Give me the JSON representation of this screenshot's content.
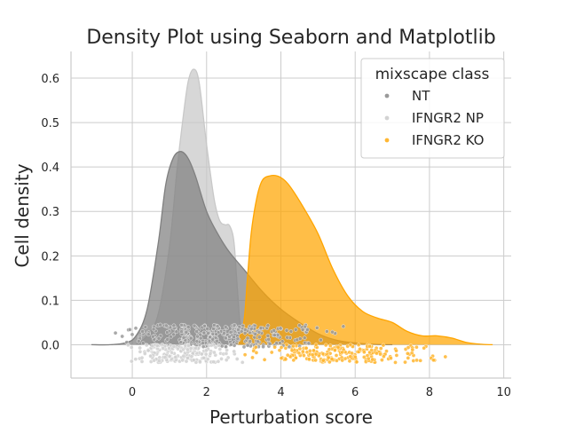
{
  "chart_data": {
    "type": "area",
    "title": "Density Plot using Seaborn and Matplotlib",
    "xlabel": "Perturbation score",
    "ylabel": "Cell density",
    "xlim": [
      -1.65,
      10.2
    ],
    "ylim": [
      -0.075,
      0.66
    ],
    "x_ticks": [
      0,
      2,
      4,
      6,
      8,
      10
    ],
    "x_tick_labels": [
      "0",
      "2",
      "4",
      "6",
      "8",
      "10"
    ],
    "y_ticks": [
      0.0,
      0.1,
      0.2,
      0.3,
      0.4,
      0.5,
      0.6
    ],
    "y_tick_labels": [
      "0.0",
      "0.1",
      "0.2",
      "0.3",
      "0.4",
      "0.5",
      "0.6"
    ],
    "grid": true,
    "legend": {
      "title": "mixscape class",
      "placement": "top-right",
      "entries": [
        "NT",
        "IFNGR2 NP",
        "IFNGR2 KO"
      ]
    },
    "series": [
      {
        "name": "IFNGR2 NP",
        "color": "#c8c8c8",
        "x": [
          0.1,
          0.4,
          0.7,
          1.0,
          1.2,
          1.35,
          1.5,
          1.65,
          1.8,
          2.0,
          2.2,
          2.35,
          2.5,
          2.6,
          2.7,
          2.75,
          2.8,
          2.85,
          2.9,
          3.0,
          3.2,
          3.5
        ],
        "y": [
          0.0,
          0.02,
          0.07,
          0.22,
          0.39,
          0.5,
          0.59,
          0.62,
          0.59,
          0.45,
          0.33,
          0.28,
          0.27,
          0.27,
          0.25,
          0.22,
          0.16,
          0.1,
          0.05,
          0.02,
          0.005,
          0.0
        ]
      },
      {
        "name": "NT",
        "color": "#808080",
        "x": [
          -1.1,
          -0.6,
          -0.2,
          0.1,
          0.4,
          0.7,
          0.9,
          1.1,
          1.3,
          1.5,
          1.7,
          2.0,
          2.3,
          2.6,
          3.0,
          3.5,
          4.0,
          4.5,
          5.0,
          5.5,
          6.0,
          6.5,
          7.0
        ],
        "y": [
          0.0,
          0.0,
          0.004,
          0.02,
          0.08,
          0.23,
          0.36,
          0.42,
          0.435,
          0.42,
          0.38,
          0.3,
          0.25,
          0.21,
          0.17,
          0.12,
          0.08,
          0.05,
          0.025,
          0.01,
          0.004,
          0.001,
          0.0
        ]
      },
      {
        "name": "IFNGR2 KO",
        "color": "#ffa500",
        "x": [
          2.8,
          3.0,
          3.1,
          3.2,
          3.35,
          3.5,
          3.7,
          3.9,
          4.1,
          4.3,
          4.6,
          5.0,
          5.4,
          5.8,
          6.2,
          6.6,
          7.0,
          7.4,
          7.8,
          8.2,
          8.6,
          9.0,
          9.4,
          9.7
        ],
        "y": [
          0.0,
          0.05,
          0.15,
          0.25,
          0.33,
          0.37,
          0.38,
          0.38,
          0.37,
          0.35,
          0.31,
          0.25,
          0.17,
          0.11,
          0.075,
          0.06,
          0.05,
          0.03,
          0.02,
          0.02,
          0.015,
          0.005,
          0.001,
          0.0
        ]
      }
    ],
    "strip_points": [
      {
        "name": "NT",
        "color": "#9a9a9a",
        "x_range": [
          -0.5,
          5.9
        ],
        "y_band": [
          -0.005,
          0.045
        ],
        "count": 300
      },
      {
        "name": "IFNGR2 NP",
        "color": "#d0d0d0",
        "x_range": [
          -0.3,
          3.0
        ],
        "y_band": [
          -0.04,
          0.0
        ],
        "count": 200
      },
      {
        "name": "IFNGR2 KO",
        "color": "#ffb52e",
        "x_range": [
          3.0,
          8.6
        ],
        "y_band": [
          -0.04,
          0.0
        ],
        "count": 220
      }
    ]
  }
}
